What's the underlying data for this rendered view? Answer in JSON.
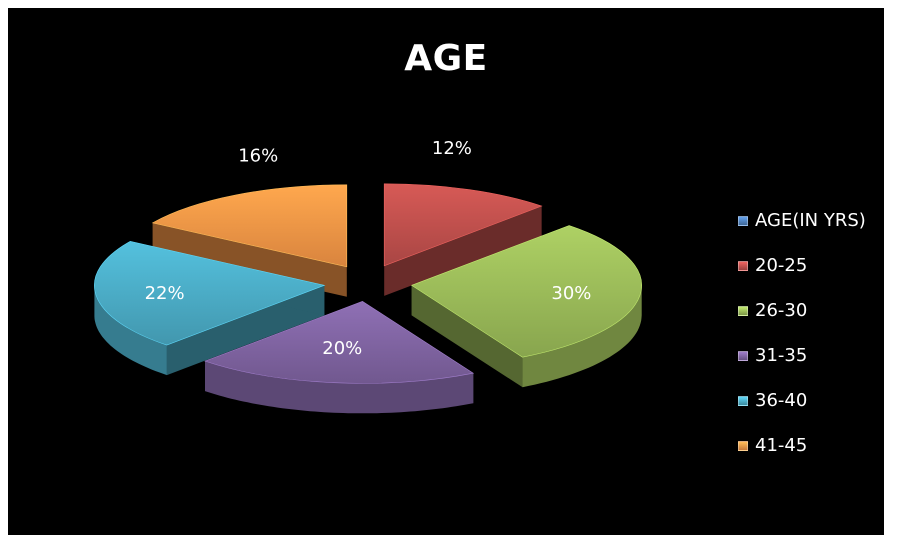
{
  "chart_data": {
    "type": "pie",
    "title": "AGE",
    "legend_position": "right",
    "categories": [
      "AGE(IN YRS)",
      "20-25",
      "26-30",
      "31-35",
      "36-40",
      "41-45"
    ],
    "values": [
      0,
      12,
      30,
      20,
      22,
      16
    ],
    "data_labels": [
      "",
      "12%",
      "30%",
      "20%",
      "22%",
      "16%"
    ],
    "colors": [
      "#4f81bd",
      "#c0504d",
      "#9bbb59",
      "#8064a2",
      "#4bacc6",
      "#f79646"
    ]
  }
}
